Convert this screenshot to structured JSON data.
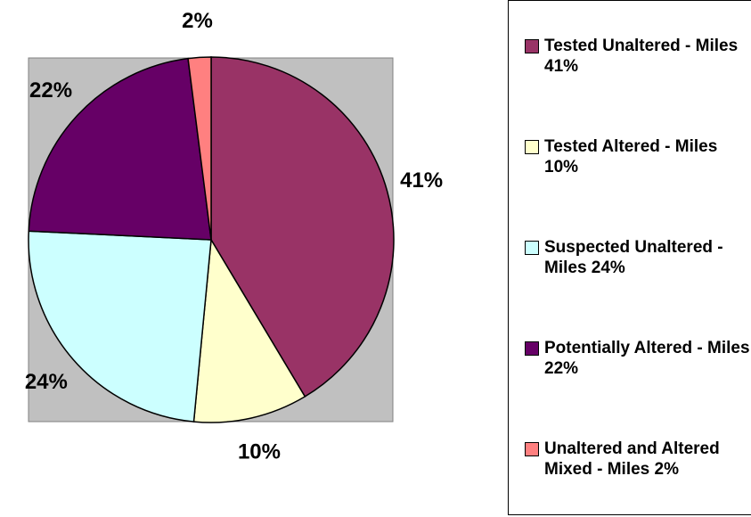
{
  "chart_data": {
    "type": "pie",
    "categories": [
      "Tested Unaltered - Miles 41%",
      "Tested Altered - Miles 10%",
      "Suspected Unaltered - Miles 24%",
      "Potentially Altered - Miles 22%",
      "Unaltered and Altered Mixed - Miles 2%"
    ],
    "values": [
      41,
      10,
      24,
      22,
      2
    ],
    "value_labels": [
      "41%",
      "10%",
      "24%",
      "22%",
      "2%"
    ],
    "colors": [
      "#993366",
      "#ffffcc",
      "#ccffff",
      "#660066",
      "#ff8080"
    ]
  }
}
